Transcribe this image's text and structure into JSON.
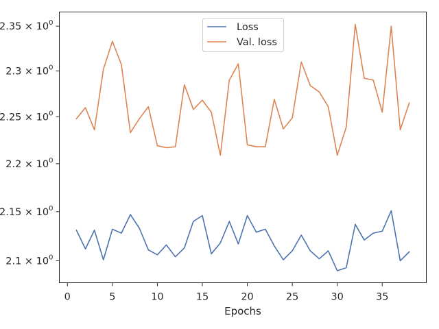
{
  "chart_data": {
    "type": "line",
    "title": "",
    "xlabel": "Epochs",
    "ylabel": "",
    "yscale": "log",
    "xlim": [
      -0.9,
      39.9
    ],
    "ylim": [
      2.078,
      2.366
    ],
    "xticks": [
      0,
      5,
      10,
      15,
      20,
      25,
      30,
      35
    ],
    "xtick_labels": [
      "0",
      "5",
      "10",
      "15",
      "20",
      "25",
      "30",
      "35"
    ],
    "yticks": [
      2.1,
      2.15,
      2.2,
      2.25,
      2.3,
      2.35
    ],
    "ytick_labels": [
      "2.1",
      "2.15",
      "2.2",
      "2.25",
      "2.3",
      "2.35"
    ],
    "ytick_base": "× 10",
    "ytick_exponent": "0",
    "grid": false,
    "legend_position": "top-center",
    "x": [
      1,
      2,
      3,
      4,
      5,
      6,
      7,
      8,
      9,
      10,
      11,
      12,
      13,
      14,
      15,
      16,
      17,
      18,
      19,
      20,
      21,
      22,
      23,
      24,
      25,
      26,
      27,
      28,
      29,
      30,
      31,
      32,
      33,
      34,
      35,
      36,
      37,
      38
    ],
    "series": [
      {
        "name": "Loss",
        "color": "#4c72b0",
        "values": [
          2.131,
          2.112,
          2.131,
          2.101,
          2.132,
          2.128,
          2.147,
          2.133,
          2.111,
          2.106,
          2.116,
          2.104,
          2.113,
          2.14,
          2.146,
          2.107,
          2.118,
          2.14,
          2.117,
          2.146,
          2.129,
          2.132,
          2.115,
          2.101,
          2.11,
          2.126,
          2.11,
          2.102,
          2.11,
          2.09,
          2.093,
          2.137,
          2.121,
          2.128,
          2.13,
          2.151,
          2.1,
          2.109
        ]
      },
      {
        "name": "Val. loss",
        "color": "#dd8452",
        "values": [
          2.248,
          2.26,
          2.236,
          2.302,
          2.333,
          2.307,
          2.233,
          2.248,
          2.261,
          2.219,
          2.217,
          2.218,
          2.285,
          2.258,
          2.268,
          2.255,
          2.209,
          2.29,
          2.308,
          2.22,
          2.218,
          2.218,
          2.269,
          2.237,
          2.249,
          2.31,
          2.284,
          2.277,
          2.261,
          2.209,
          2.239,
          2.352,
          2.292,
          2.29,
          2.255,
          2.35,
          2.236,
          2.265
        ]
      }
    ]
  }
}
